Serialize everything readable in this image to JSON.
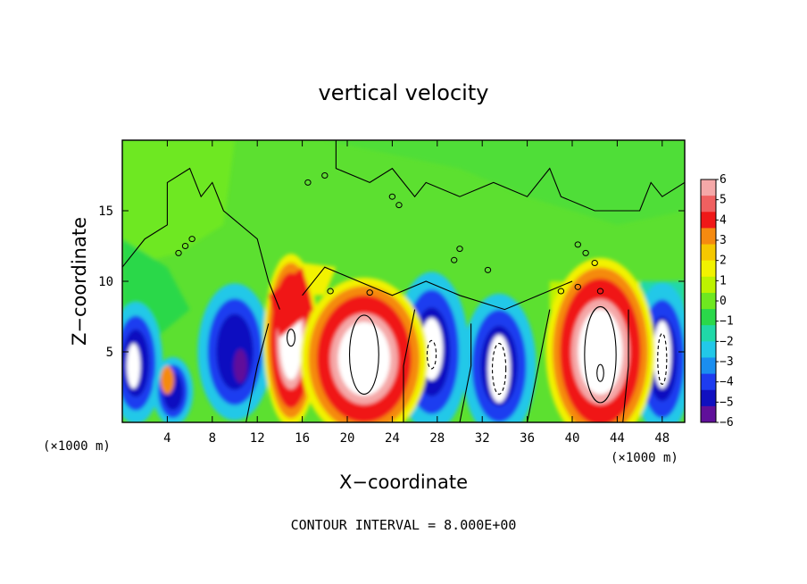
{
  "chart_data": {
    "type": "heatmap",
    "title": "vertical velocity",
    "xlabel": "X−coordinate",
    "ylabel": "Z−coordinate",
    "x_unit": "(×1000 m)",
    "x_unit_right": "(×1000 m)",
    "xlim": [
      0,
      50
    ],
    "ylim": [
      0,
      20
    ],
    "x_ticks": [
      "4",
      "8",
      "12",
      "16",
      "20",
      "24",
      "28",
      "32",
      "36",
      "40",
      "44",
      "48"
    ],
    "x_tick_values": [
      4,
      8,
      12,
      16,
      20,
      24,
      28,
      32,
      36,
      40,
      44,
      48
    ],
    "y_ticks": [
      "5",
      "10",
      "15"
    ],
    "y_tick_values": [
      5,
      10,
      15
    ],
    "colorbar": {
      "labels": [
        "6",
        "5",
        "4",
        "3",
        "2",
        "1",
        "0",
        "−1",
        "−2",
        "−3",
        "−4",
        "−5",
        "−6"
      ],
      "range": [
        -6,
        6
      ],
      "colors": [
        "#f5a8a8",
        "#f06060",
        "#f01818",
        "#f58a10",
        "#f5c800",
        "#f2f200",
        "#bdf200",
        "#6ee820",
        "#2ad84a",
        "#20d8a8",
        "#22c8e8",
        "#1a8ef0",
        "#1e3cf0",
        "#1010c0",
        "#60109a"
      ]
    },
    "features": [
      {
        "kind": "updraft",
        "x": 15.0,
        "z": 5.5,
        "peak": 14
      },
      {
        "kind": "updraft",
        "x": 21.5,
        "z": 4.5,
        "peak": 20
      },
      {
        "kind": "updraft",
        "x": 42.5,
        "z": 5.0,
        "peak": 24
      },
      {
        "kind": "downdraft",
        "x": 1.2,
        "z": 4.0,
        "peak": -12
      },
      {
        "kind": "downdraft",
        "x": 10.0,
        "z": 5.0,
        "peak": -7
      },
      {
        "kind": "downdraft",
        "x": 27.5,
        "z": 5.0,
        "peak": -10
      },
      {
        "kind": "downdraft",
        "x": 33.5,
        "z": 4.0,
        "peak": -10
      },
      {
        "kind": "downdraft",
        "x": 48.0,
        "z": 4.5,
        "peak": -10
      }
    ],
    "contour_interval": 8.0
  },
  "annotation": {
    "contour_text": "CONTOUR INTERVAL = 8.000E+00"
  }
}
